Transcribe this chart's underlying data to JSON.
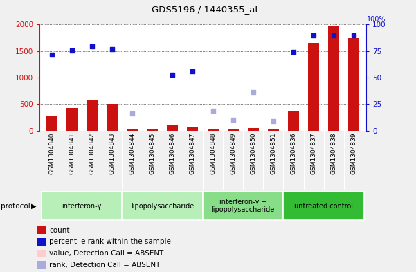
{
  "title": "GDS5196 / 1440355_at",
  "samples": [
    "GSM1304840",
    "GSM1304841",
    "GSM1304842",
    "GSM1304843",
    "GSM1304844",
    "GSM1304845",
    "GSM1304846",
    "GSM1304847",
    "GSM1304848",
    "GSM1304849",
    "GSM1304850",
    "GSM1304851",
    "GSM1304836",
    "GSM1304837",
    "GSM1304838",
    "GSM1304839"
  ],
  "bar_values": [
    270,
    420,
    575,
    510,
    25,
    40,
    100,
    70,
    20,
    30,
    45,
    25,
    360,
    1650,
    1960,
    1750
  ],
  "blue_dots": [
    1430,
    1510,
    1590,
    1540,
    null,
    null,
    1050,
    1120,
    null,
    null,
    null,
    null,
    1480,
    1790,
    1800,
    1790
  ],
  "blue_absent_dots": [
    null,
    null,
    null,
    null,
    320,
    null,
    null,
    null,
    380,
    210,
    720,
    180,
    null,
    null,
    null,
    null
  ],
  "ylim_left": [
    0,
    2000
  ],
  "yticks_left": [
    0,
    500,
    1000,
    1500,
    2000
  ],
  "yticks_right": [
    0,
    25,
    50,
    75,
    100
  ],
  "protocols": [
    {
      "label": "interferon-γ",
      "start": 0,
      "end": 3,
      "color": "#b8efb8"
    },
    {
      "label": "lipopolysaccharide",
      "start": 4,
      "end": 7,
      "color": "#b8efb8"
    },
    {
      "label": "interferon-γ +\nlipopolysaccharide",
      "start": 8,
      "end": 11,
      "color": "#88dd88"
    },
    {
      "label": "untreated control",
      "start": 12,
      "end": 15,
      "color": "#33bb33"
    }
  ],
  "bar_color": "#cc1111",
  "bar_absent_color": "#ffcccc",
  "blue_dot_color": "#1111cc",
  "blue_absent_dot_color": "#aaaadd",
  "legend_items": [
    {
      "label": "count",
      "color": "#cc1111"
    },
    {
      "label": "percentile rank within the sample",
      "color": "#1111cc"
    },
    {
      "label": "value, Detection Call = ABSENT",
      "color": "#ffcccc"
    },
    {
      "label": "rank, Detection Call = ABSENT",
      "color": "#aaaadd"
    }
  ]
}
